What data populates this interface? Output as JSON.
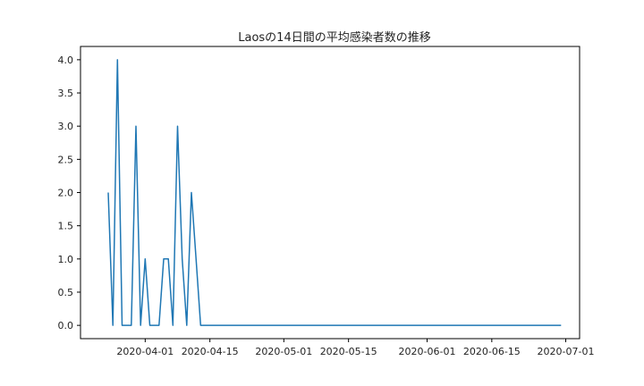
{
  "chart_data": {
    "type": "line",
    "title": "Laosの14日間の平均感染者数の推移",
    "xlabel": "",
    "ylabel": "",
    "x_axis_type": "date",
    "xlim": [
      "2020-03-18",
      "2020-07-04"
    ],
    "ylim": [
      -0.2,
      4.2
    ],
    "x_ticks": [
      "2020-04-01",
      "2020-04-15",
      "2020-05-01",
      "2020-05-15",
      "2020-06-01",
      "2020-06-15",
      "2020-07-01"
    ],
    "y_ticks": [
      "0.0",
      "0.5",
      "1.0",
      "1.5",
      "2.0",
      "2.5",
      "3.0",
      "3.5",
      "4.0"
    ],
    "grid": false,
    "series": [
      {
        "color": "#1f77b4",
        "x": [
          "2020-03-24",
          "2020-03-25",
          "2020-03-26",
          "2020-03-27",
          "2020-03-28",
          "2020-03-29",
          "2020-03-30",
          "2020-03-31",
          "2020-04-01",
          "2020-04-02",
          "2020-04-03",
          "2020-04-04",
          "2020-04-05",
          "2020-04-06",
          "2020-04-07",
          "2020-04-08",
          "2020-04-09",
          "2020-04-10",
          "2020-04-11",
          "2020-04-12",
          "2020-04-13",
          "2020-04-14",
          "2020-04-15",
          "2020-06-30"
        ],
        "y": [
          2,
          0,
          4,
          0,
          0,
          0,
          3,
          0,
          1,
          0,
          0,
          0,
          1,
          1,
          0,
          3,
          1,
          0,
          2,
          1,
          0,
          0,
          0,
          0
        ]
      }
    ]
  }
}
